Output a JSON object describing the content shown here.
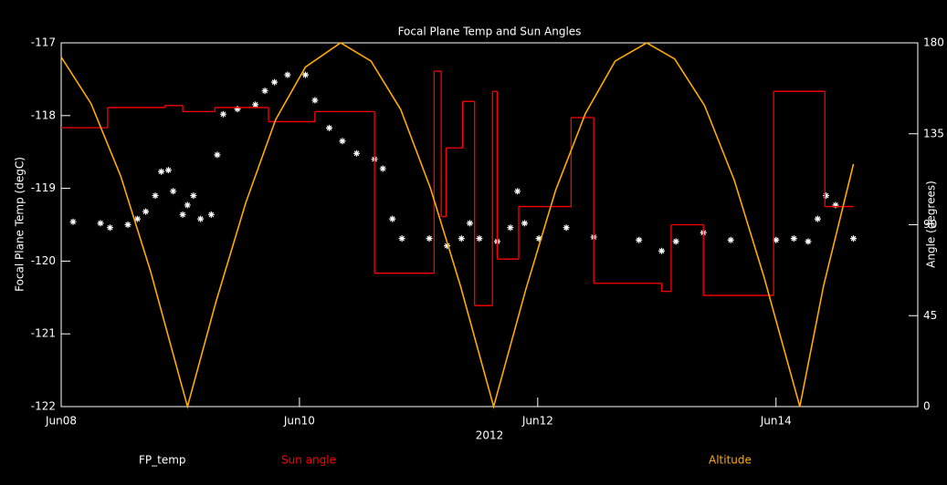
{
  "chart_data": {
    "type": "line",
    "title": "Focal Plane Temp and Sun Angles",
    "x_label": "2012",
    "y_label": "Focal Plane Temp (degC)",
    "y2_label": "Angle (degrees)",
    "xlim": [
      0,
      7.19
    ],
    "xticks": [
      {
        "value": 0,
        "label": "Jun08"
      },
      {
        "value": 2,
        "label": "Jun10"
      },
      {
        "value": 4,
        "label": "Jun12"
      },
      {
        "value": 6,
        "label": "Jun14"
      }
    ],
    "ylim": [
      -117,
      -122
    ],
    "yticks": [
      -117,
      -118,
      -119,
      -120,
      -121,
      -122
    ],
    "y2lim": [
      0,
      180
    ],
    "y2ticks": [
      0,
      45,
      90,
      135,
      180
    ],
    "series": [
      {
        "name": "FP_temp",
        "color": "#ffffff",
        "mode": "scatter",
        "x": [
          0.1,
          0.33,
          0.41,
          0.56,
          0.64,
          0.71,
          0.79,
          0.84,
          0.9,
          0.94,
          1.02,
          1.06,
          1.11,
          1.17,
          1.26,
          1.31,
          1.36,
          1.48,
          1.63,
          1.71,
          1.79,
          1.9,
          2.05,
          2.13,
          2.25,
          2.36,
          2.48,
          2.63,
          2.7,
          2.78,
          2.86,
          3.09,
          3.24,
          3.36,
          3.43,
          3.51,
          3.66,
          3.77,
          3.83,
          3.89,
          4.01,
          4.24,
          4.47,
          4.85,
          5.04,
          5.16,
          5.39,
          5.62,
          6.0,
          6.15,
          6.27,
          6.35,
          6.42,
          6.5,
          6.65
        ],
        "values": [
          -119.46,
          -119.48,
          -119.54,
          -119.5,
          -119.42,
          -119.32,
          -119.1,
          -118.77,
          -118.75,
          -119.04,
          -119.36,
          -119.23,
          -119.1,
          -119.42,
          -119.36,
          -118.54,
          -117.98,
          -117.91,
          -117.85,
          -117.66,
          -117.54,
          -117.44,
          -117.44,
          -117.79,
          -118.17,
          -118.35,
          -118.52,
          -118.6,
          -118.73,
          -119.42,
          -119.69,
          -119.69,
          -119.79,
          -119.69,
          -119.48,
          -119.69,
          -119.73,
          -119.54,
          -119.04,
          -119.48,
          -119.69,
          -119.54,
          -119.67,
          -119.71,
          -119.86,
          -119.73,
          -119.61,
          -119.71,
          -119.71,
          -119.69,
          -119.73,
          -119.42,
          -119.1,
          -119.23,
          -119.69
        ]
      },
      {
        "name": "Sun angle",
        "color": "#ff0000",
        "mode": "step",
        "axis": "y2",
        "x": [
          0,
          0.39,
          0.87,
          1.02,
          1.29,
          1.74,
          2.13,
          2.63,
          3.13,
          3.19,
          3.23,
          3.37,
          3.47,
          3.62,
          3.66,
          3.84,
          4.28,
          4.47,
          5.04,
          5.12,
          5.39,
          5.98,
          6.41,
          6.65
        ],
        "values": [
          138,
          148,
          149,
          146,
          148,
          141,
          146,
          66,
          166,
          94,
          128,
          151,
          50,
          156,
          73,
          99,
          143,
          61,
          57,
          90,
          55,
          156,
          99,
          99
        ]
      },
      {
        "name": "Altitude",
        "color": "#ffaa00",
        "mode": "line",
        "axis": "y2",
        "x": [
          0,
          0.25,
          0.5,
          0.75,
          1.06,
          1.3,
          1.55,
          1.8,
          2.05,
          2.345,
          2.6,
          2.85,
          3.1,
          3.35,
          3.63,
          3.9,
          4.15,
          4.4,
          4.65,
          4.915,
          5.15,
          5.4,
          5.65,
          5.9,
          6.2,
          6.4,
          6.65
        ],
        "values": [
          173,
          150,
          114,
          67,
          0,
          52,
          101,
          142,
          168,
          180,
          171,
          147,
          108,
          60,
          0,
          58,
          107,
          145,
          171,
          180,
          172,
          149,
          112,
          64,
          0,
          60,
          120
        ]
      }
    ]
  }
}
